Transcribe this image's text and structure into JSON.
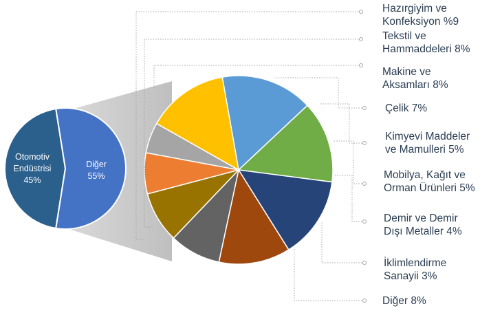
{
  "chart_data": {
    "type": "pie",
    "left_pie": {
      "slices": [
        {
          "label_lines": [
            "Otomotiv",
            "Endüstrisi",
            "45%"
          ],
          "value": 45,
          "color": "#2b5f8c"
        },
        {
          "label_lines": [
            "Diğer",
            "55%"
          ],
          "value": 55,
          "color": "#4472c4"
        }
      ]
    },
    "right_pie": {
      "slices": [
        {
          "label_lines": [
            "Hazırgiyim ve",
            "Konfeksiyon %9"
          ],
          "value": 9,
          "color": "#5b9bd5"
        },
        {
          "label_lines": [
            "Tekstil ve",
            "Hammaddeleri  8%"
          ],
          "value": 8,
          "color": "#70ad47"
        },
        {
          "label_lines": [
            "Makine ve",
            "Aksamları 8%"
          ],
          "value": 8,
          "color": "#264478"
        },
        {
          "label_lines": [
            "Çelik 7%"
          ],
          "value": 7,
          "color": "#9e480e"
        },
        {
          "label_lines": [
            "Kimyevi Maddeler",
            "ve Mamulleri  5%"
          ],
          "value": 5,
          "color": "#636363"
        },
        {
          "label_lines": [
            "Mobilya, Kağıt ve",
            "Orman Ürünleri  5%"
          ],
          "value": 5,
          "color": "#997300"
        },
        {
          "label_lines": [
            "Demir ve Demir",
            "Dışı Metaller 4%"
          ],
          "value": 4,
          "color": "#ed7d31"
        },
        {
          "label_lines": [
            "İklimlendirme",
            "Sanayii 3%"
          ],
          "value": 3,
          "color": "#a5a5a5"
        },
        {
          "label_lines": [
            "Diğer 8%"
          ],
          "value": 8,
          "color": "#ffc000"
        }
      ]
    }
  }
}
